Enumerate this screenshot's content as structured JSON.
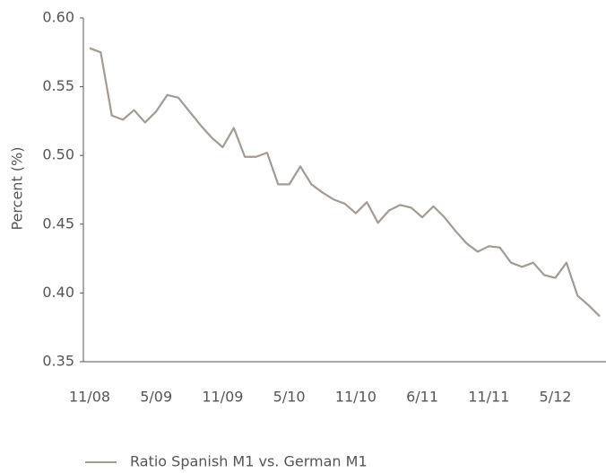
{
  "chart_data": {
    "type": "line",
    "y_label": "Percent (%)",
    "categories": [
      "11/08",
      null,
      null,
      null,
      null,
      null,
      "5/09",
      null,
      null,
      null,
      null,
      null,
      "11/09",
      null,
      null,
      null,
      null,
      null,
      "5/10",
      null,
      null,
      null,
      null,
      null,
      "11/10",
      null,
      null,
      null,
      null,
      null,
      "6/11",
      null,
      null,
      null,
      null,
      null,
      "11/11",
      null,
      null,
      null,
      null,
      null,
      "5/12",
      null,
      null,
      null,
      null
    ],
    "series": [
      {
        "name": "Ratio Spanish M1 vs. German M1",
        "color": "#a39a92",
        "values": [
          0.578,
          0.575,
          0.529,
          0.526,
          0.533,
          0.524,
          0.532,
          0.544,
          0.542,
          0.532,
          0.522,
          0.513,
          0.506,
          0.52,
          0.499,
          0.499,
          0.502,
          0.479,
          0.479,
          0.492,
          0.479,
          0.473,
          0.468,
          0.465,
          0.458,
          0.466,
          0.451,
          0.46,
          0.464,
          0.462,
          0.455,
          0.463,
          0.455,
          0.445,
          0.436,
          0.43,
          0.434,
          0.433,
          0.422,
          0.419,
          0.422,
          0.413,
          0.411,
          0.422,
          0.398,
          0.391,
          0.383
        ]
      }
    ],
    "ylim": [
      0.35,
      0.6
    ],
    "yticks": [
      0.35,
      {
        "value": 0.4,
        "label": "0.40"
      },
      0.45,
      {
        "value": 0.5,
        "label": "0.50"
      },
      0.55,
      {
        "value": 0.6,
        "label": "0.60"
      }
    ],
    "grid": false,
    "legend": "bottom-left"
  }
}
